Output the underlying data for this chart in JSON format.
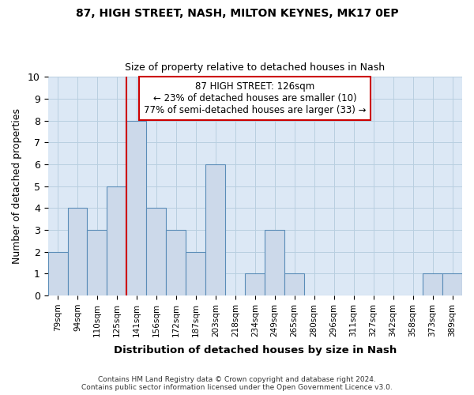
{
  "title1": "87, HIGH STREET, NASH, MILTON KEYNES, MK17 0EP",
  "title2": "Size of property relative to detached houses in Nash",
  "xlabel": "Distribution of detached houses by size in Nash",
  "ylabel": "Number of detached properties",
  "categories": [
    "79sqm",
    "94sqm",
    "110sqm",
    "125sqm",
    "141sqm",
    "156sqm",
    "172sqm",
    "187sqm",
    "203sqm",
    "218sqm",
    "234sqm",
    "249sqm",
    "265sqm",
    "280sqm",
    "296sqm",
    "311sqm",
    "327sqm",
    "342sqm",
    "358sqm",
    "373sqm",
    "389sqm"
  ],
  "values": [
    2,
    4,
    3,
    5,
    8,
    4,
    3,
    2,
    6,
    0,
    1,
    3,
    1,
    0,
    0,
    0,
    0,
    0,
    0,
    1,
    1
  ],
  "bar_color": "#ccd9ea",
  "bar_edge_color": "#5b8db8",
  "subject_vline_x": 3,
  "subject_label": "87 HIGH STREET: 126sqm",
  "annotation_line1": "← 23% of detached houses are smaller (10)",
  "annotation_line2": "77% of semi-detached houses are larger (33) →",
  "annotation_box_color": "#ffffff",
  "annotation_box_edge": "#cc0000",
  "subject_vline_color": "#cc0000",
  "ylim": [
    0,
    10
  ],
  "yticks": [
    0,
    1,
    2,
    3,
    4,
    5,
    6,
    7,
    8,
    9,
    10
  ],
  "footer1": "Contains HM Land Registry data © Crown copyright and database right 2024.",
  "footer2": "Contains public sector information licensed under the Open Government Licence v3.0.",
  "bg_color": "#ffffff",
  "plot_bg_color": "#dce8f5",
  "grid_color": "#b8cfe0"
}
